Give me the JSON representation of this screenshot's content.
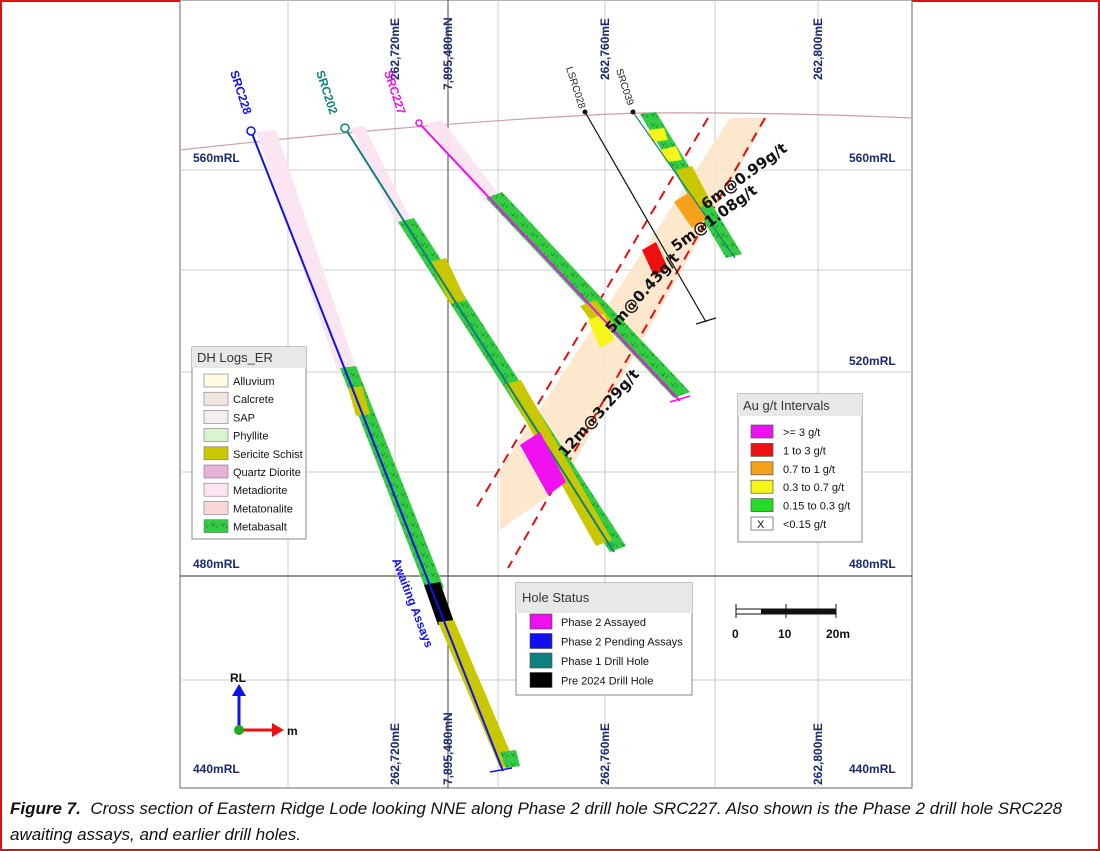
{
  "caption": {
    "figure_label": "Figure 7.",
    "text": "Cross section of Eastern Ridge Lode looking NNE along Phase 2 drill hole SRC227. Also shown is the Phase 2 drill hole SRC228 awaiting assays, and earlier drill holes."
  },
  "grid": {
    "eastings": [
      "262,720mE",
      "262,760mE",
      "262,800mE"
    ],
    "northing": "7,895,480mN",
    "rl_labels": [
      "560mRL",
      "520mRL",
      "480mRL",
      "440mRL"
    ]
  },
  "holes": {
    "SRC228": "SRC228",
    "SRC202": "SRC202",
    "SRC227": "SRC227",
    "LSRC028": "LSRC028",
    "SRC039": "SRC039",
    "note": "Awaiting Assays"
  },
  "intervals": [
    "6m@0.99g/t",
    "5m@1.08g/t",
    "5m@0.43g/t",
    "12m@3.29g/t"
  ],
  "dh_logs": {
    "title": "DH Logs_ER",
    "items": [
      {
        "label": "Alluvium",
        "color": "#fffbe0"
      },
      {
        "label": "Calcrete",
        "color": "#f2e6e0"
      },
      {
        "label": "SAP",
        "color": "#f4eeee"
      },
      {
        "label": "Phyllite",
        "color": "#d8f5d0"
      },
      {
        "label": "Sericite Schist",
        "color": "#c9c800"
      },
      {
        "label": "Quartz Diorite",
        "color": "#e6b3d6"
      },
      {
        "label": "Metadiorite",
        "color": "#fce4f2"
      },
      {
        "label": "Metatonalite",
        "color": "#fad8d8"
      },
      {
        "label": "Metabasalt",
        "color": "#33cc44"
      }
    ]
  },
  "au_legend": {
    "title": "Au g/t Intervals",
    "items": [
      {
        "label": ">= 3 g/t",
        "color": "#ee10ee"
      },
      {
        "label": "1 to 3 g/t",
        "color": "#ee1010"
      },
      {
        "label": "0.7 to 1 g/t",
        "color": "#f5a21a"
      },
      {
        "label": "0.3 to 0.7 g/t",
        "color": "#f5f51a"
      },
      {
        "label": "0.15 to 0.3 g/t",
        "color": "#22dd22"
      },
      {
        "label": "<0.15 g/t",
        "color": "#ffffff",
        "mark": "X"
      }
    ]
  },
  "hole_status": {
    "title": "Hole Status",
    "items": [
      {
        "label": "Phase 2 Assayed",
        "color": "#ee10ee"
      },
      {
        "label": "Phase 2 Pending Assays",
        "color": "#1010ee"
      },
      {
        "label": "Phase 1 Drill Hole",
        "color": "#0f7f7f"
      },
      {
        "label": "Pre 2024 Drill Hole",
        "color": "#000000"
      }
    ]
  },
  "scale_bar": {
    "labels": [
      "0",
      "10",
      "20m"
    ]
  },
  "axes_indicator": {
    "up": "RL",
    "right": "m"
  },
  "colors": {
    "grid": "#1a2a6c",
    "metabasalt": "#33cc44",
    "sericite": "#c9c800",
    "metadiorite": "#fce4f2",
    "lode_fill": "#fde5c8",
    "lode_outline": "#dd1111"
  }
}
